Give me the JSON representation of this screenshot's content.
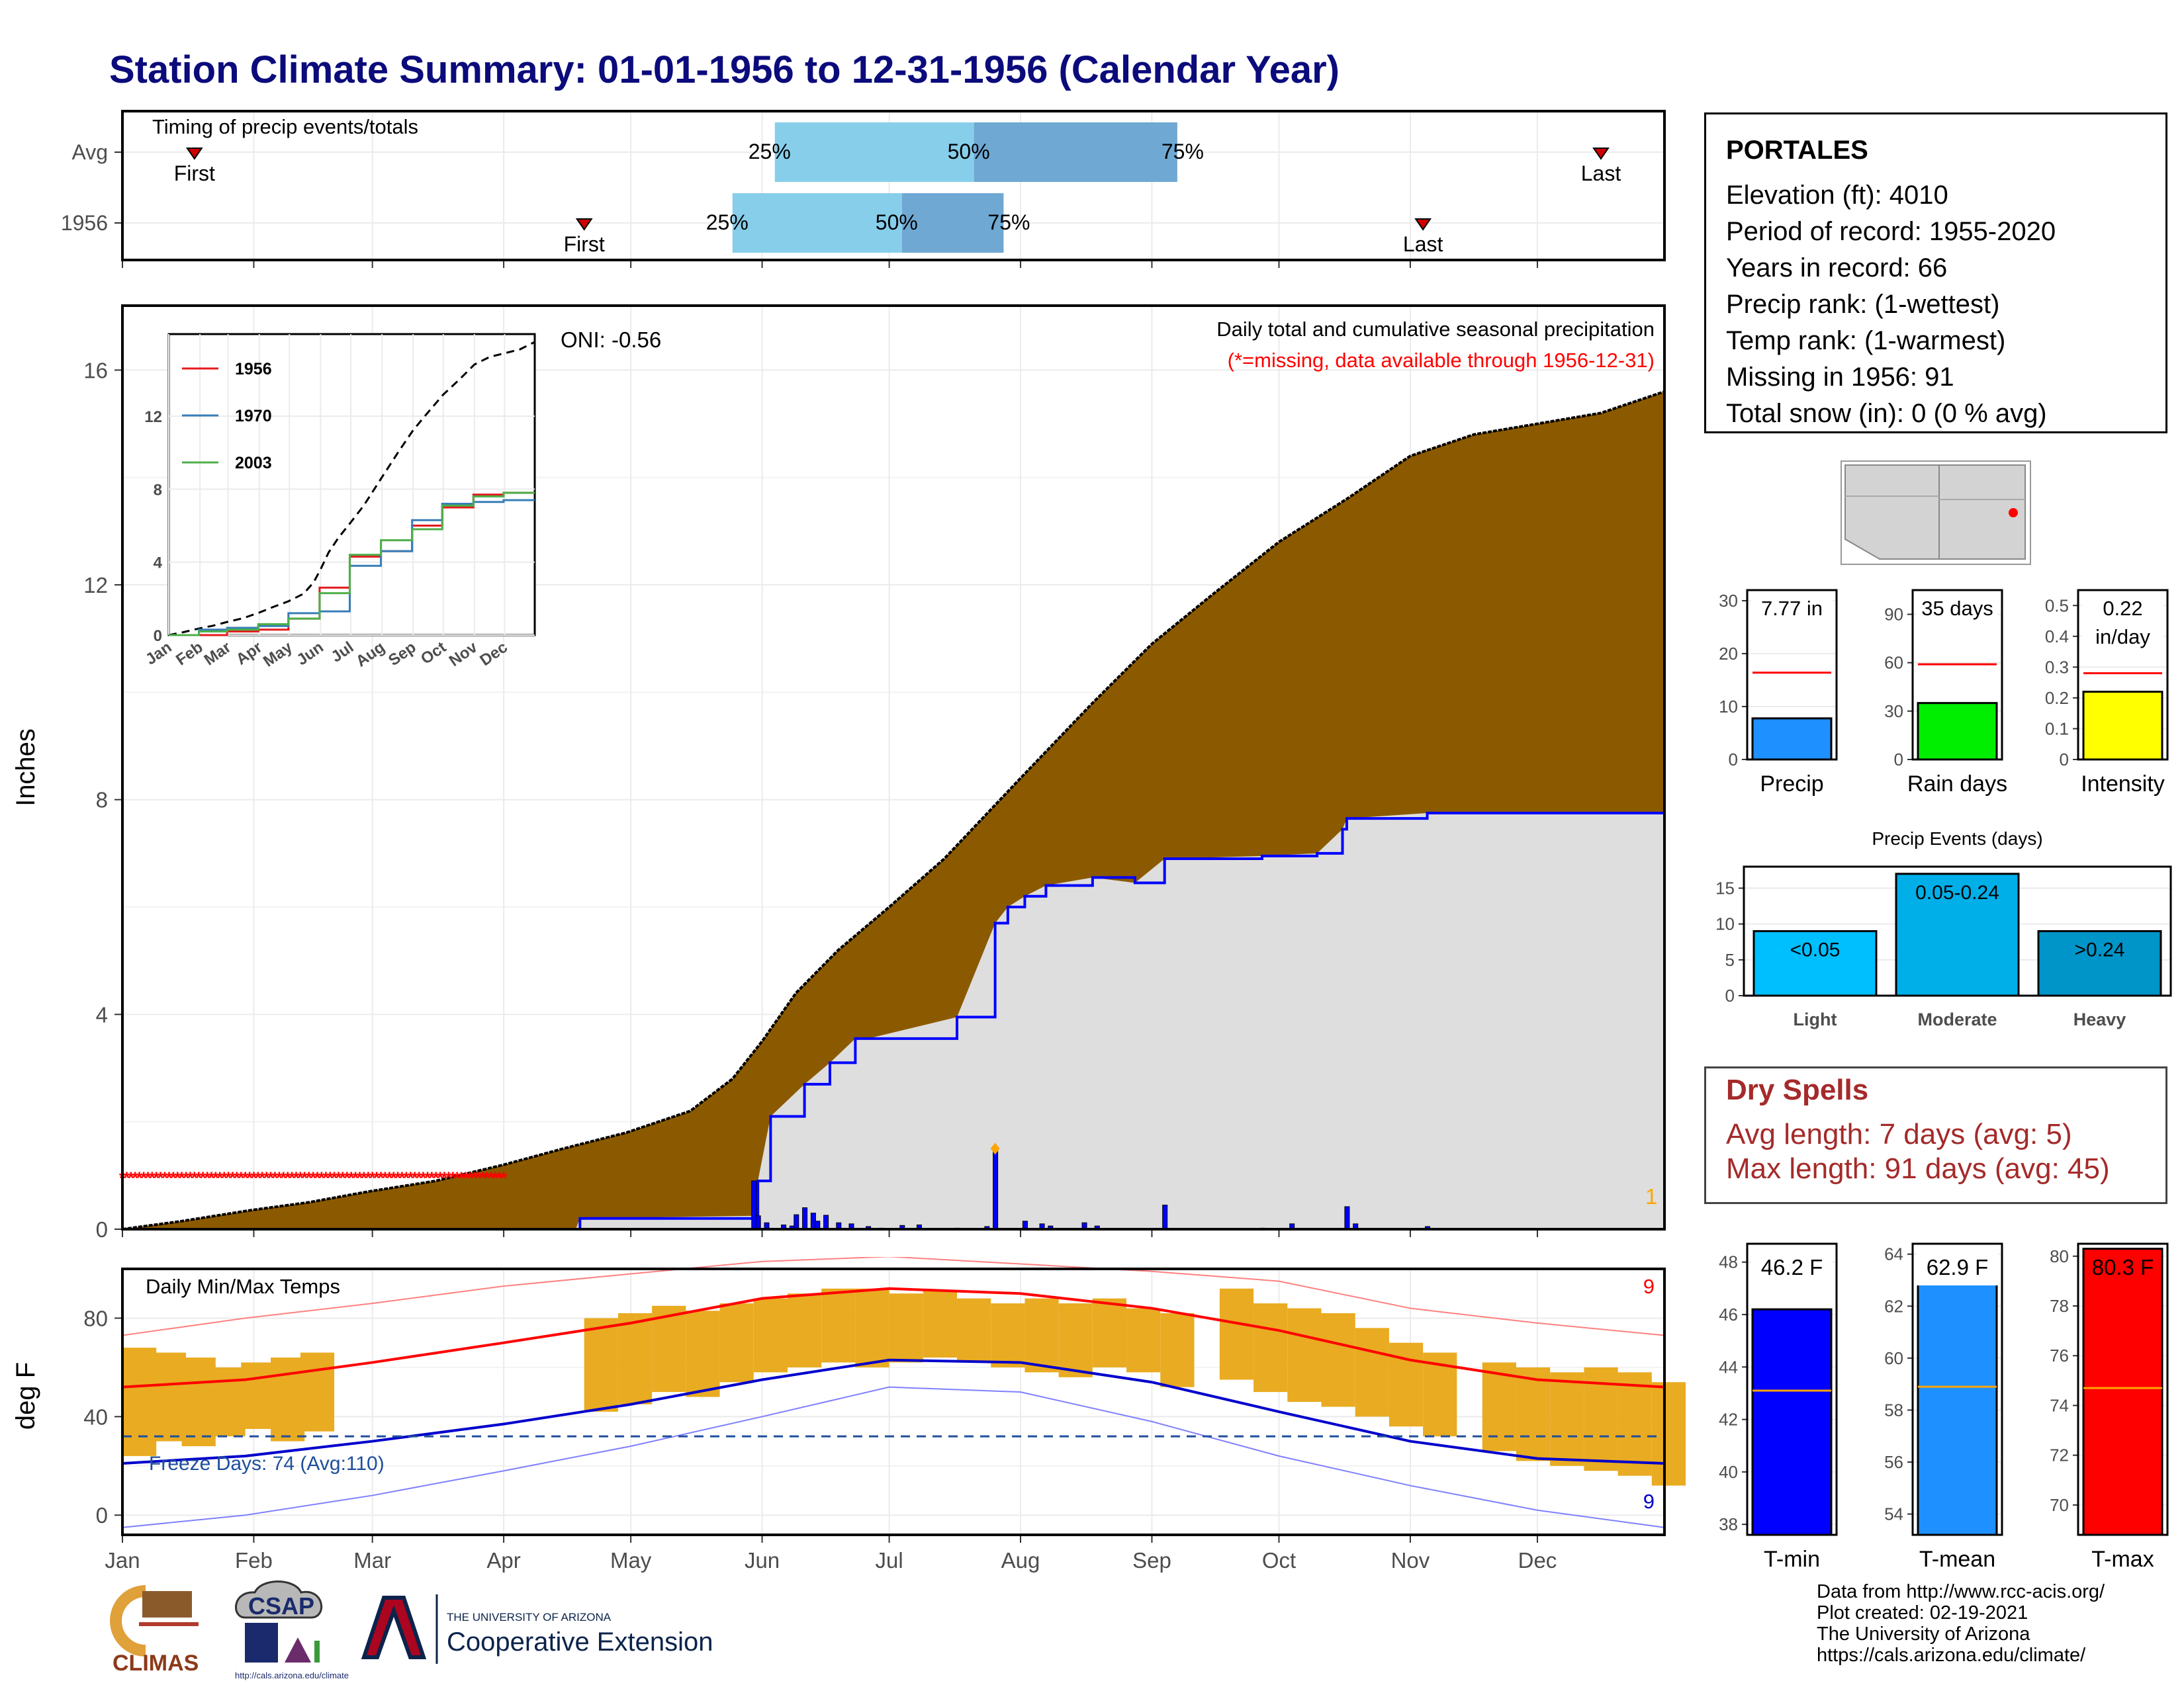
{
  "title": "Station Climate Summary: 01-01-1956 to 12-31-1956 (Calendar Year)",
  "station": {
    "name": "PORTALES",
    "rows": [
      "Elevation (ft): 4010",
      "Period of record: 1955-2020",
      "Years in record: 66",
      "Precip rank:  (1-wettest)",
      "Temp rank:  (1-warmest)",
      "Missing in 1956: 91",
      "Total snow (in): 0 (0 % avg)"
    ]
  },
  "dry_spells": {
    "title": "Dry Spells",
    "avg": "Avg length: 7 days (avg: 5)",
    "max": "Max length: 91 days (avg: 45)"
  },
  "credits": [
    "Data from http://www.rcc-acis.org/",
    "Plot created: 02-19-2021",
    "The University of Arizona",
    "https://cals.arizona.edu/climate/"
  ],
  "logos": {
    "climas": "CLIMAS",
    "csap": "CSAP",
    "csap_url": "http://cals.arizona.edu/climate",
    "ua_line1": "THE UNIVERSITY OF ARIZONA",
    "ua_line2": "Cooperative Extension"
  },
  "colors": {
    "title": "#0b0b7c",
    "accumulated_precip": "#8b5a00",
    "avg_precip_fill": "#dedede",
    "precip_line": "#0000ff",
    "missing_marker": "#ff0000",
    "temp_bar": "#e9ab21",
    "tmax_avg": "#ff0000",
    "tmin_avg": "#0000cc",
    "q25_50": "#87ceeb",
    "q50_75": "#6fa8d3"
  },
  "chart_data": [
    {
      "id": "timing",
      "type": "bar",
      "title": "Timing of precip events/totals",
      "categories": [
        "Avg",
        "1956"
      ],
      "rows": [
        {
          "label": "Avg",
          "first": "First",
          "last": "Last",
          "first_day": 18,
          "last_day": 350,
          "q25": 155,
          "q50": 202,
          "q75": 250,
          "q25_label": "25%",
          "q50_label": "50%",
          "q75_label": "75%"
        },
        {
          "label": "1956",
          "first": "First",
          "last": "Last",
          "first_day": 110,
          "last_day": 308,
          "q25": 145,
          "q50": 185,
          "q75": 209,
          "q25_label": "25%",
          "q50_label": "50%",
          "q75_label": "75%"
        }
      ]
    },
    {
      "id": "precip",
      "type": "area",
      "title": "Daily total and cumulative seasonal precipitation",
      "subtitle": "(*=missing, data available through 1956-12-31)",
      "oni": "ONI: -0.56",
      "ylabel": "Inches",
      "ylim": [
        0,
        17.2
      ],
      "yticks": [
        0,
        4,
        8,
        12,
        16
      ],
      "months": [
        "Jan",
        "Feb",
        "Mar",
        "Apr",
        "May",
        "Jun",
        "Jul",
        "Aug",
        "Sep",
        "Oct",
        "Nov",
        "Dec"
      ],
      "corner_label": "1",
      "avg_cumulative": {
        "x": [
          1,
          15,
          31,
          45,
          59,
          75,
          91,
          105,
          120,
          135,
          145,
          152,
          160,
          170,
          182,
          195,
          213,
          230,
          244,
          258,
          274,
          290,
          305,
          320,
          335,
          350,
          365
        ],
        "y": [
          0,
          0.15,
          0.35,
          0.5,
          0.7,
          0.9,
          1.2,
          1.5,
          1.8,
          2.2,
          2.8,
          3.5,
          4.4,
          5.2,
          6.0,
          6.9,
          8.4,
          9.8,
          10.9,
          11.8,
          12.8,
          13.6,
          14.4,
          14.8,
          15.0,
          15.2,
          15.6
        ]
      },
      "year_cumulative": {
        "x": [
          1,
          108,
          109,
          150,
          151,
          154,
          162,
          168,
          174,
          177,
          198,
          207,
          210,
          214,
          219,
          230,
          240,
          247,
          270,
          283,
          289,
          290,
          309,
          365
        ],
        "y": [
          0,
          0,
          0.2,
          0.25,
          0.9,
          2.1,
          2.7,
          3.1,
          3.55,
          3.55,
          3.95,
          5.7,
          6.0,
          6.2,
          6.4,
          6.55,
          6.45,
          6.9,
          6.95,
          7.0,
          7.45,
          7.65,
          7.75,
          7.75
        ]
      },
      "missing_start": 1,
      "missing_end": 91,
      "missing_y": 0.98,
      "daily": [
        [
          150,
          0.9
        ],
        [
          151,
          0.25
        ],
        [
          153,
          0.12
        ],
        [
          157,
          0.08
        ],
        [
          159,
          0.06
        ],
        [
          160,
          0.27
        ],
        [
          162,
          0.4
        ],
        [
          164,
          0.3
        ],
        [
          165,
          0.15
        ],
        [
          167,
          0.26
        ],
        [
          170,
          0.12
        ],
        [
          173,
          0.1
        ],
        [
          177,
          0.05
        ],
        [
          180,
          0.02
        ],
        [
          185,
          0.07
        ],
        [
          189,
          0.08
        ],
        [
          198,
          0.02
        ],
        [
          205,
          0.05
        ],
        [
          207,
          1.45
        ],
        [
          214,
          0.15
        ],
        [
          218,
          0.1
        ],
        [
          220,
          0.06
        ],
        [
          228,
          0.12
        ],
        [
          231,
          0.06
        ],
        [
          247,
          0.45
        ],
        [
          270,
          0.02
        ],
        [
          277,
          0.1
        ],
        [
          290,
          0.42
        ],
        [
          292,
          0.1
        ],
        [
          309,
          0.05
        ]
      ],
      "highlight_point": [
        207,
        1.5
      ]
    },
    {
      "id": "temps",
      "type": "line",
      "title": "Daily Min/Max Temps",
      "ylabel": "deg F",
      "ylim": [
        -8,
        100
      ],
      "yticks": [
        0,
        40,
        80
      ],
      "freeze_label": "Freeze Days: 74 (Avg:110)",
      "freeze_line": 32,
      "months": [
        "Jan",
        "Feb",
        "Mar",
        "Apr",
        "May",
        "Jun",
        "Jul",
        "Aug",
        "Sep",
        "Oct",
        "Nov",
        "Dec"
      ],
      "top_right": "9",
      "bottom_right": "9",
      "tmax_avg": {
        "x": [
          1,
          30,
          60,
          91,
          121,
          152,
          182,
          213,
          244,
          274,
          305,
          335,
          365
        ],
        "y": [
          52,
          55,
          62,
          70,
          78,
          88,
          92,
          90,
          84,
          75,
          63,
          55,
          52
        ]
      },
      "tmin_avg": {
        "x": [
          1,
          30,
          60,
          91,
          121,
          152,
          182,
          213,
          244,
          274,
          305,
          335,
          365
        ],
        "y": [
          21,
          24,
          30,
          37,
          45,
          55,
          63,
          62,
          54,
          42,
          30,
          23,
          21
        ]
      },
      "tmax_rec": {
        "x": [
          1,
          30,
          60,
          91,
          121,
          152,
          182,
          213,
          244,
          274,
          305,
          335,
          365
        ],
        "y": [
          73,
          80,
          86,
          93,
          98,
          103,
          105,
          102,
          99,
          95,
          84,
          78,
          73
        ]
      },
      "tmin_rec": {
        "x": [
          1,
          30,
          60,
          91,
          121,
          152,
          182,
          213,
          244,
          274,
          305,
          335,
          365
        ],
        "y": [
          -5,
          0,
          8,
          18,
          28,
          40,
          52,
          50,
          38,
          24,
          12,
          2,
          -5
        ]
      },
      "daily_ranges": [
        [
          1,
          24,
          68
        ],
        [
          8,
          30,
          66
        ],
        [
          15,
          28,
          64
        ],
        [
          22,
          32,
          60
        ],
        [
          29,
          35,
          62
        ],
        [
          36,
          30,
          64
        ],
        [
          43,
          34,
          66
        ],
        [
          110,
          42,
          80
        ],
        [
          118,
          45,
          82
        ],
        [
          126,
          50,
          85
        ],
        [
          134,
          48,
          83
        ],
        [
          142,
          54,
          86
        ],
        [
          150,
          58,
          88
        ],
        [
          158,
          60,
          90
        ],
        [
          166,
          62,
          92
        ],
        [
          174,
          60,
          92
        ],
        [
          182,
          62,
          90
        ],
        [
          190,
          64,
          91
        ],
        [
          198,
          62,
          88
        ],
        [
          206,
          60,
          86
        ],
        [
          214,
          58,
          88
        ],
        [
          222,
          56,
          86
        ],
        [
          230,
          60,
          88
        ],
        [
          238,
          58,
          84
        ],
        [
          246,
          52,
          82
        ],
        [
          260,
          55,
          92
        ],
        [
          268,
          50,
          86
        ],
        [
          276,
          46,
          84
        ],
        [
          284,
          44,
          82
        ],
        [
          292,
          40,
          76
        ],
        [
          300,
          36,
          70
        ],
        [
          308,
          32,
          66
        ],
        [
          322,
          26,
          62
        ],
        [
          330,
          22,
          60
        ],
        [
          338,
          20,
          58
        ],
        [
          346,
          18,
          60
        ],
        [
          354,
          16,
          58
        ],
        [
          362,
          12,
          54
        ]
      ]
    },
    {
      "id": "precip_summary",
      "type": "bar",
      "panels": [
        {
          "xlabel": "Precip",
          "value": 7.77,
          "avg": 16.4,
          "label_lines": [
            "7.77 in"
          ],
          "ylim": [
            0,
            32
          ],
          "yticks": [
            0,
            10,
            20,
            30
          ],
          "color": "#1e90ff"
        },
        {
          "xlabel": "Rain days",
          "value": 35,
          "avg": 59,
          "label_lines": [
            "35 days"
          ],
          "ylim": [
            0,
            105
          ],
          "yticks": [
            0,
            30,
            60,
            90
          ],
          "color": "#00ee00"
        },
        {
          "xlabel": "Intensity",
          "value": 0.22,
          "avg": 0.28,
          "label_lines": [
            "0.22",
            "in/day"
          ],
          "ylim": [
            0,
            0.55
          ],
          "yticks": [
            0.0,
            0.1,
            0.2,
            0.3,
            0.4,
            0.5
          ],
          "color": "#ffff00"
        }
      ]
    },
    {
      "id": "precip_events",
      "type": "bar",
      "title": "Precip Events (days)",
      "categories": [
        "Light",
        "Moderate",
        "Heavy"
      ],
      "values": [
        9,
        17,
        9
      ],
      "labels": [
        "<0.05",
        "0.05-0.24",
        ">0.24"
      ],
      "colors": [
        "#00bfff",
        "#00aee8",
        "#0095c8"
      ],
      "ylim": [
        0,
        18
      ],
      "yticks": [
        0,
        5,
        10,
        15
      ]
    },
    {
      "id": "temp_summary",
      "type": "bar",
      "panels": [
        {
          "xlabel": "T-min",
          "value": 46.2,
          "avg": 43.1,
          "label": "46.2 F",
          "ylim": [
            37.6,
            48.7
          ],
          "yticks": [
            38,
            40,
            42,
            44,
            46,
            48
          ],
          "color": "#0000ff"
        },
        {
          "xlabel": "T-mean",
          "value": 62.9,
          "avg": 58.9,
          "label": "62.9 F",
          "ylim": [
            53.2,
            64.4
          ],
          "yticks": [
            54,
            56,
            58,
            60,
            62,
            64
          ],
          "color": "#1e90ff"
        },
        {
          "xlabel": "T-max",
          "value": 80.3,
          "avg": 74.7,
          "label": "80.3 F",
          "ylim": [
            68.8,
            80.5
          ],
          "yticks": [
            70,
            72,
            74,
            76,
            78,
            80
          ],
          "color": "#ff0000"
        }
      ]
    }
  ]
}
